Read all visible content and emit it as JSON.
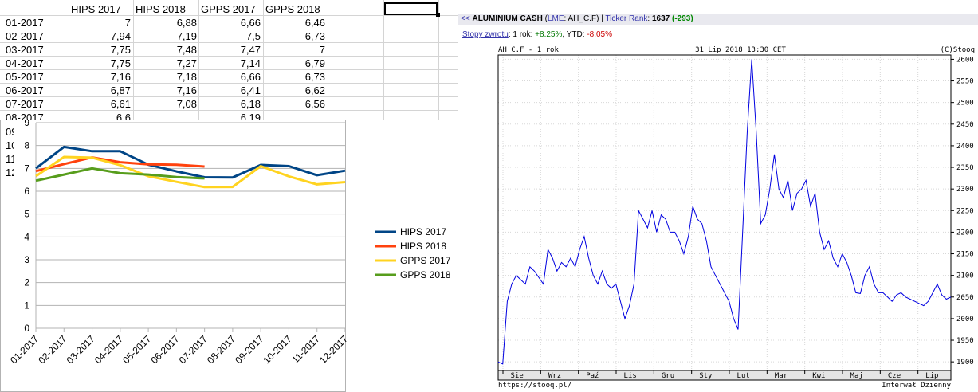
{
  "sheet": {
    "columns": [
      "HIPS 2017",
      "HIPS 2018",
      "GPPS 2017",
      "GPPS 2018"
    ],
    "rows": [
      {
        "label": "01-2017",
        "values": [
          "7",
          "6,88",
          "6,66",
          "6,46"
        ]
      },
      {
        "label": "02-2017",
        "values": [
          "7,94",
          "7,19",
          "7,5",
          "6,73"
        ]
      },
      {
        "label": "03-2017",
        "values": [
          "7,75",
          "7,48",
          "7,47",
          "7"
        ]
      },
      {
        "label": "04-2017",
        "values": [
          "7,75",
          "7,27",
          "7,14",
          "6,79"
        ]
      },
      {
        "label": "05-2017",
        "values": [
          "7,16",
          "7,18",
          "6,66",
          "6,73"
        ]
      },
      {
        "label": "06-2017",
        "values": [
          "6,87",
          "7,16",
          "6,41",
          "6,62"
        ]
      },
      {
        "label": "07-2017",
        "values": [
          "6,61",
          "7,08",
          "6,18",
          "6,56"
        ]
      },
      {
        "label": "08-2017",
        "values": [
          "6,6",
          "",
          "6,19",
          ""
        ]
      }
    ],
    "clipped_labels": [
      "09",
      "10",
      "11",
      "12"
    ]
  },
  "chart_data": [
    {
      "type": "line",
      "categories": [
        "01-2017",
        "02-2017",
        "03-2017",
        "04-2017",
        "05-2017",
        "06-2017",
        "07-2017",
        "08-2017",
        "09-2017",
        "10-2017",
        "11-2017",
        "12-2017"
      ],
      "ylim": [
        0,
        9
      ],
      "yticks": [
        0,
        1,
        2,
        3,
        4,
        5,
        6,
        7,
        8,
        9
      ],
      "grid": true,
      "legend_position": "right",
      "series": [
        {
          "name": "HIPS 2017",
          "color": "#004586",
          "values": [
            7,
            7.94,
            7.75,
            7.75,
            7.16,
            6.87,
            6.61,
            6.6,
            7.15,
            7.1,
            6.7,
            6.9
          ]
        },
        {
          "name": "HIPS 2018",
          "color": "#ff420e",
          "values": [
            6.88,
            7.19,
            7.48,
            7.27,
            7.18,
            7.16,
            7.08,
            null,
            null,
            null,
            null,
            null
          ]
        },
        {
          "name": "GPPS 2017",
          "color": "#ffd320",
          "values": [
            6.66,
            7.5,
            7.47,
            7.14,
            6.66,
            6.41,
            6.18,
            6.19,
            7.1,
            6.65,
            6.3,
            6.4
          ]
        },
        {
          "name": "GPPS 2018",
          "color": "#579d1c",
          "values": [
            6.46,
            6.73,
            7,
            6.79,
            6.73,
            6.62,
            6.56,
            null,
            null,
            null,
            null,
            null
          ]
        }
      ]
    },
    {
      "type": "line",
      "title_left": "AH_C.F - 1 rok",
      "title_center": "31 Lip 2018 13:30 CET",
      "title_right": "(C)Stooq",
      "color": "#0000e0",
      "ylim": [
        1880,
        2610
      ],
      "yticks": [
        1900,
        1950,
        2000,
        2050,
        2100,
        2150,
        2200,
        2250,
        2300,
        2350,
        2400,
        2450,
        2500,
        2550,
        2600
      ],
      "months": [
        "Sie",
        "Wrz",
        "Paź",
        "Lis",
        "Gru",
        "Sty",
        "Lut",
        "Mar",
        "Kwi",
        "Maj",
        "Cze",
        "Lip"
      ],
      "x_index_range": [
        0,
        100
      ],
      "x": [
        0,
        1,
        2,
        3,
        4,
        5,
        6,
        7,
        8,
        9,
        10,
        11,
        12,
        13,
        14,
        15,
        16,
        17,
        18,
        19,
        20,
        21,
        22,
        23,
        24,
        25,
        26,
        27,
        28,
        29,
        30,
        31,
        32,
        33,
        34,
        35,
        36,
        37,
        38,
        39,
        40,
        41,
        42,
        43,
        44,
        45,
        46,
        47,
        48,
        49,
        50,
        51,
        52,
        53,
        54,
        55,
        56,
        57,
        58,
        59,
        60,
        61,
        62,
        63,
        64,
        65,
        66,
        67,
        68,
        69,
        70,
        71,
        72,
        73,
        74,
        75,
        76,
        77,
        78,
        79,
        80,
        81,
        82,
        83,
        84,
        85,
        86,
        87,
        88,
        89,
        90,
        91,
        92,
        93,
        94,
        95,
        96,
        97,
        98,
        99,
        100
      ],
      "y": [
        1900,
        1895,
        2040,
        2080,
        2100,
        2090,
        2080,
        2120,
        2110,
        2095,
        2080,
        2160,
        2140,
        2110,
        2130,
        2120,
        2140,
        2120,
        2160,
        2190,
        2140,
        2100,
        2080,
        2110,
        2080,
        2070,
        2080,
        2040,
        2000,
        2030,
        2080,
        2250,
        2230,
        2210,
        2250,
        2200,
        2240,
        2230,
        2200,
        2200,
        2180,
        2150,
        2190,
        2260,
        2230,
        2220,
        2180,
        2120,
        2100,
        2080,
        2060,
        2040,
        2000,
        1975,
        2200,
        2430,
        2600,
        2430,
        2220,
        2240,
        2300,
        2380,
        2300,
        2280,
        2320,
        2250,
        2290,
        2300,
        2320,
        2260,
        2290,
        2200,
        2160,
        2180,
        2140,
        2120,
        2150,
        2130,
        2100,
        2060,
        2058,
        2100,
        2120,
        2080,
        2060,
        2060,
        2050,
        2040,
        2055,
        2060,
        2050,
        2045,
        2040,
        2035,
        2030,
        2040,
        2060,
        2080,
        2055,
        2045,
        2050
      ],
      "footer_left": "https://stooq.pl/",
      "footer_right": "Interwał Dzienny"
    }
  ],
  "stooq": {
    "back": "<<",
    "name": "ALUMINIUM CASH",
    "exchange": "LME",
    "symbol": ": AH_C.F",
    "ticker_rank_label": "Ticker Rank",
    "ticker_rank_value": "1637",
    "ticker_rank_change": "(-293)",
    "returns_link": "Stopy zwrotu",
    "returns_1y_label": ": 1 rok: ",
    "returns_1y_value": "+8.25%",
    "returns_ytd_label": ", YTD: ",
    "returns_ytd_value": "-8.05%"
  }
}
